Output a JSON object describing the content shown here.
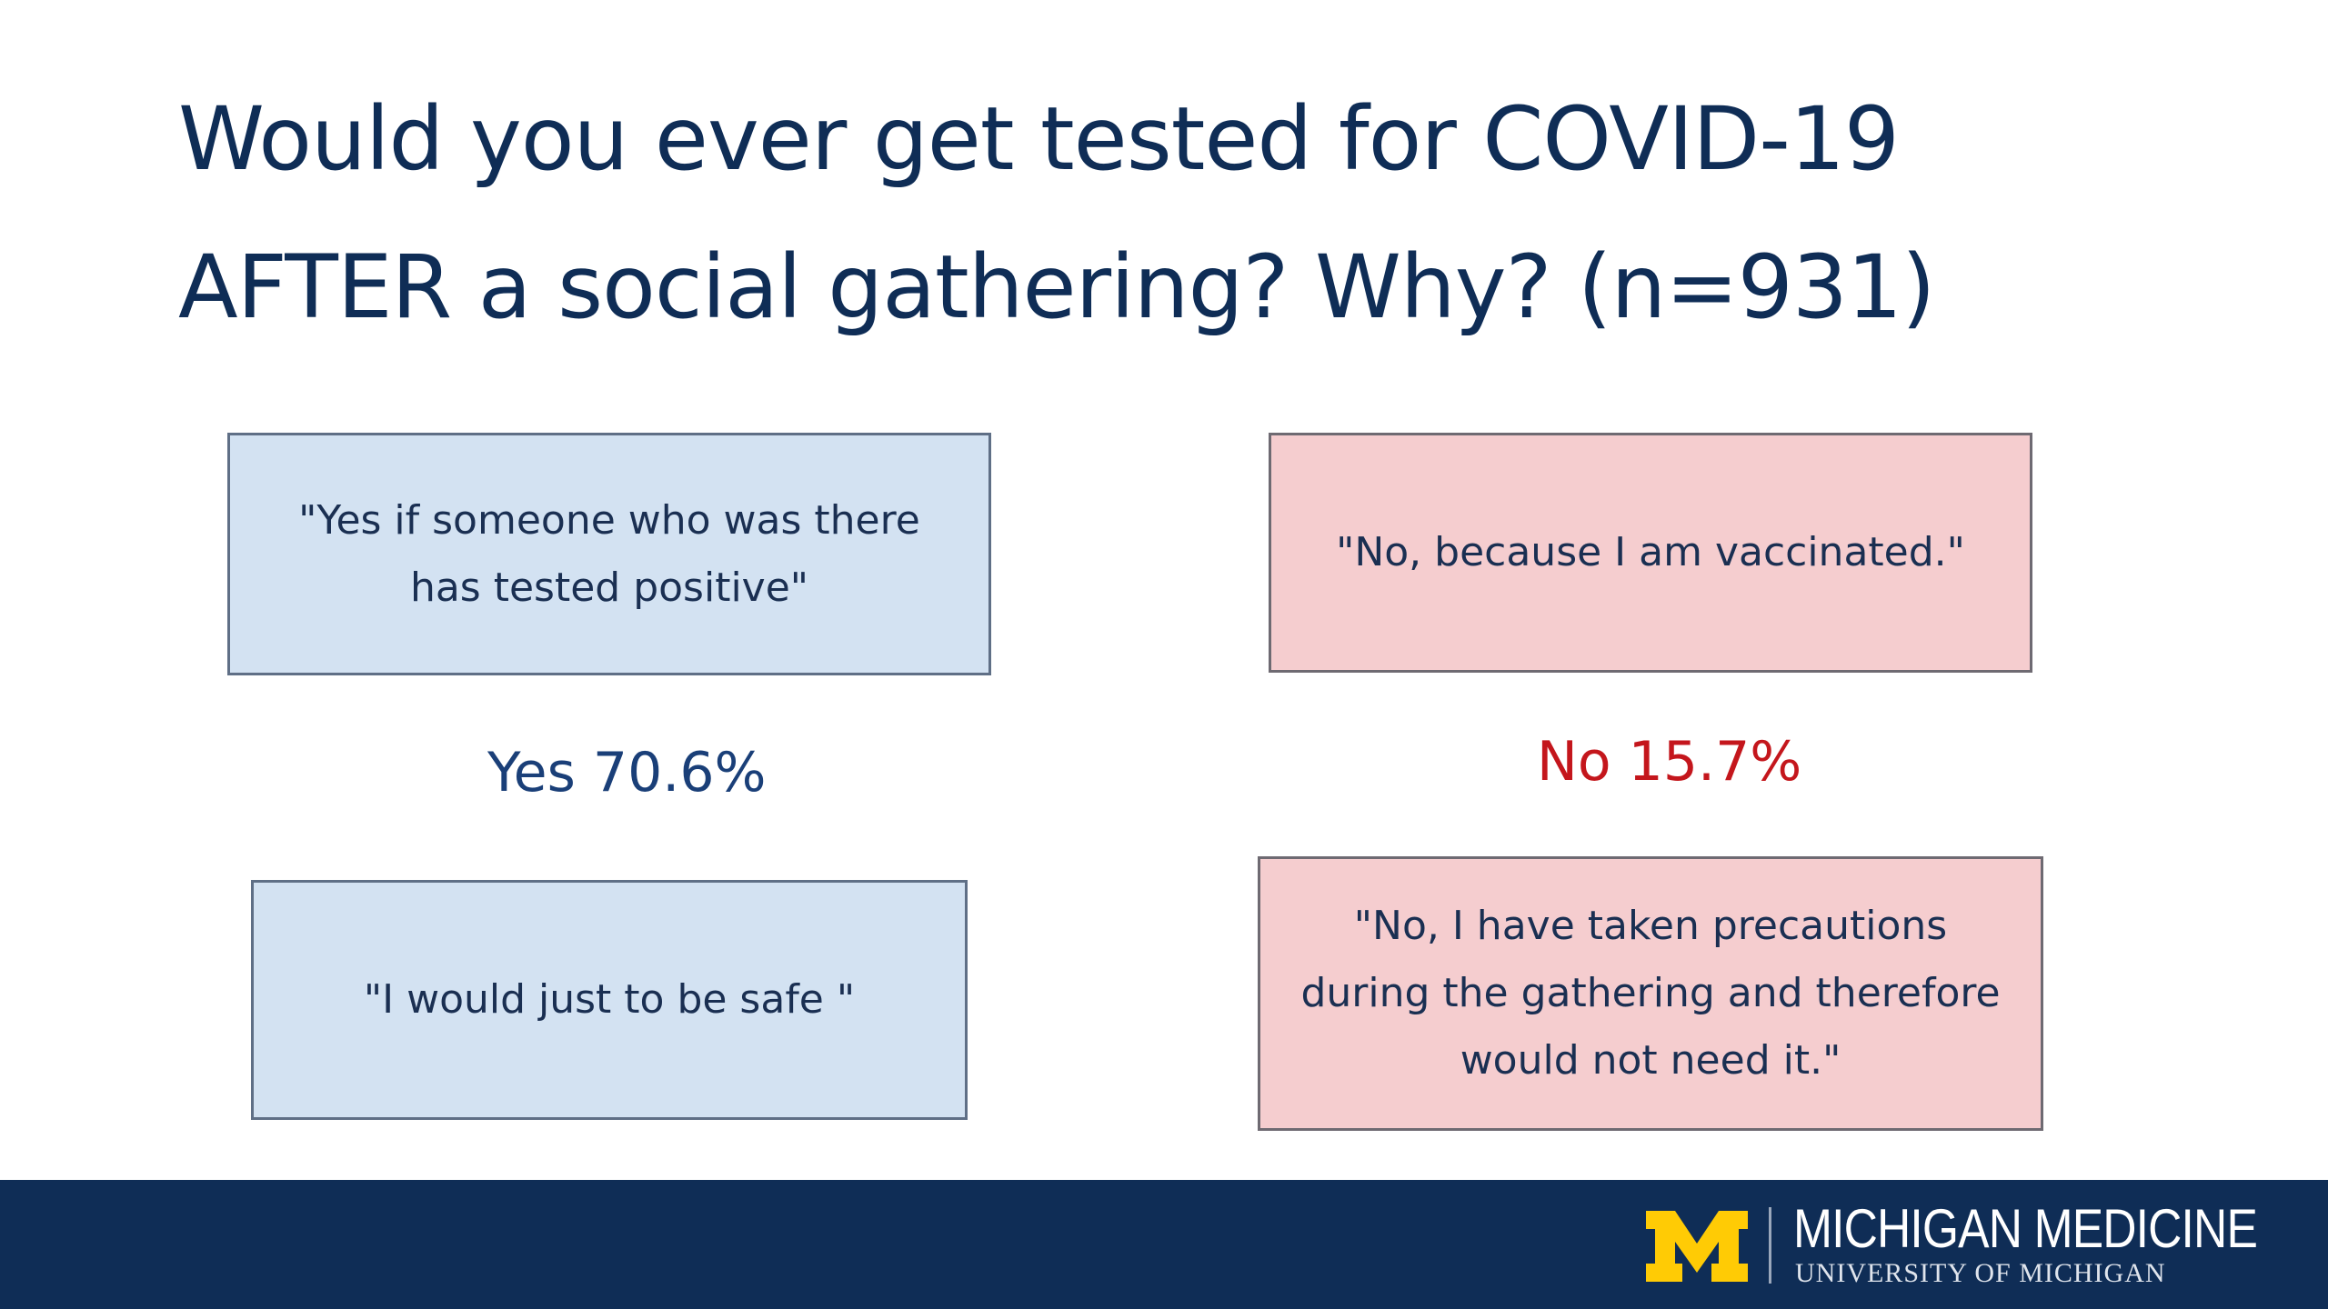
{
  "slide": {
    "title_line1": "Would you ever get tested for COVID-19",
    "title_line2": "AFTER a social gathering? Why? (n=931)"
  },
  "yes": {
    "label": "Yes 70.6%",
    "percent": 70.6,
    "color": "#1a3f78",
    "quote_bg": "#d3e2f2",
    "quotes": [
      "\"Yes if someone who was there has tested positive\"",
      "\"I would just to be safe \""
    ]
  },
  "no": {
    "label": "No 15.7%",
    "percent": 15.7,
    "color": "#c4161c",
    "quote_bg": "#f5cdcf",
    "quotes": [
      "\"No, because I am vaccinated.\"",
      "\"No, I have taken precautions during the gathering and therefore would not need it.\""
    ]
  },
  "footer": {
    "background": "#0f2d56",
    "logo_icon": "block-m-icon",
    "logo_color": "#ffcb05",
    "brand_name": "MICHIGAN MEDICINE",
    "brand_sub": "UNIVERSITY OF MICHIGAN"
  }
}
